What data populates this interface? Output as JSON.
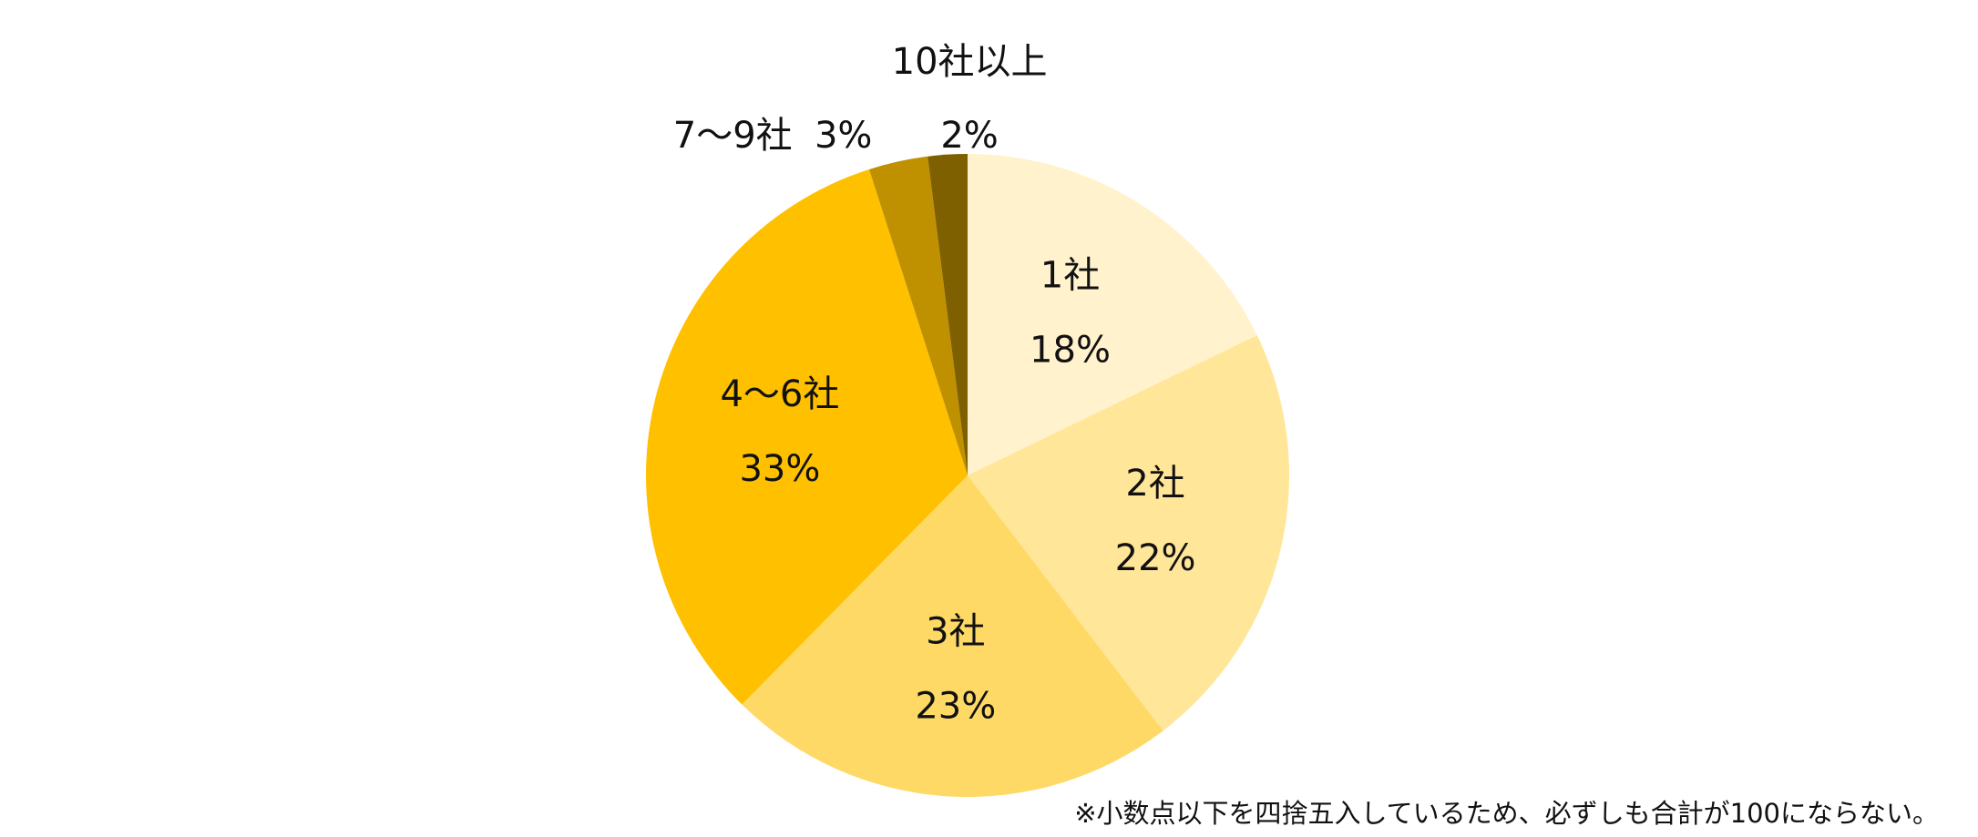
{
  "chart_data": {
    "type": "pie",
    "start_angle_deg": 0,
    "direction": "clockwise",
    "slices": [
      {
        "label": "1社",
        "value": 18,
        "value_label": "18%",
        "color": "#FFF2CC"
      },
      {
        "label": "2社",
        "value": 22,
        "value_label": "22%",
        "color": "#FFE699"
      },
      {
        "label": "3社",
        "value": 23,
        "value_label": "23%",
        "color": "#FFD966"
      },
      {
        "label": "4～6社",
        "value": 33,
        "value_label": "33%",
        "color": "#FFC000"
      },
      {
        "label": "7～9社",
        "value": 3,
        "value_label": "3%",
        "color": "#BF9000"
      },
      {
        "label": "10社以上",
        "value": 2,
        "value_label": "2%",
        "color": "#7F6000"
      }
    ],
    "footnote": "※小数点以下を四捨五入しているため、必ずしも合計が100にならない。"
  }
}
